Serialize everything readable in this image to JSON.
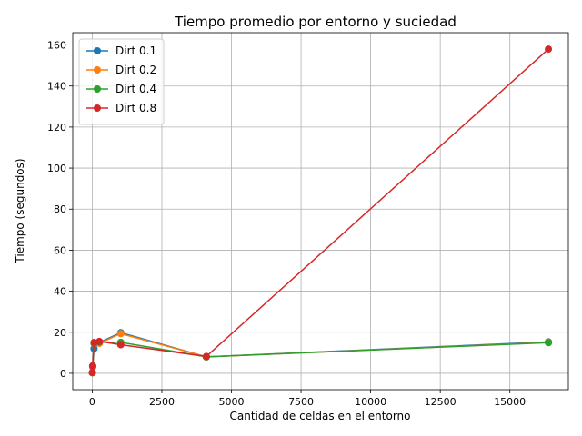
{
  "chart_data": {
    "type": "line",
    "title": "Tiempo promedio por entorno y suciedad",
    "xlabel": "Cantidad de celdas en el entorno",
    "ylabel": "Tiempo (segundos)",
    "xlim": [
      -700,
      17100
    ],
    "ylim": [
      -8,
      166
    ],
    "xticks": [
      0,
      2500,
      5000,
      7500,
      10000,
      12500,
      15000
    ],
    "yticks": [
      0,
      20,
      40,
      60,
      80,
      100,
      120,
      140,
      160
    ],
    "grid": true,
    "legend_position": "top-left",
    "x": [
      4,
      16,
      64,
      256,
      1024,
      4096,
      16384
    ],
    "series": [
      {
        "name": "Dirt 0.1",
        "color": "#1f77b4",
        "values": [
          0.3,
          3.2,
          12.0,
          15.0,
          19.8,
          8.0,
          15.3
        ]
      },
      {
        "name": "Dirt 0.2",
        "color": "#ff7f0e",
        "values": [
          0.2,
          3.0,
          14.5,
          14.6,
          19.3,
          8.0,
          15.0
        ]
      },
      {
        "name": "Dirt 0.4",
        "color": "#2ca02c",
        "values": [
          0.3,
          3.5,
          14.6,
          15.2,
          15.1,
          8.0,
          14.9
        ]
      },
      {
        "name": "Dirt 0.8",
        "color": "#d62728",
        "values": [
          0.4,
          3.6,
          15.0,
          15.5,
          13.9,
          8.2,
          158.0
        ]
      }
    ]
  }
}
